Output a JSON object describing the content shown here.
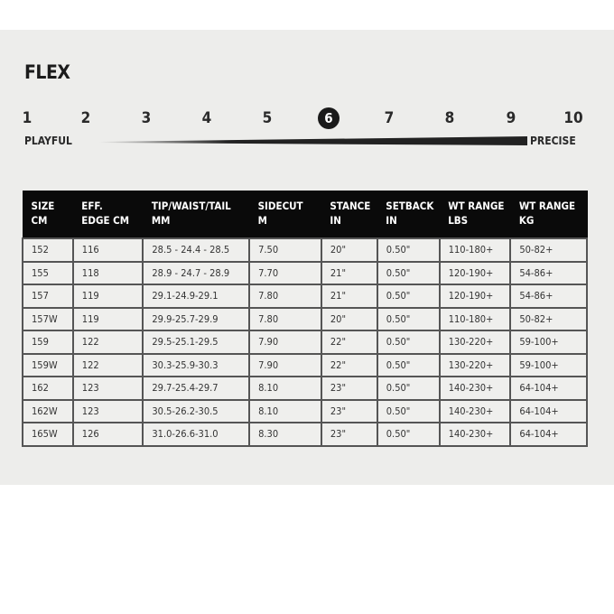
{
  "title": "FLEX",
  "flex": {
    "scale": [
      "1",
      "2",
      "3",
      "4",
      "5",
      "6",
      "7",
      "8",
      "9",
      "10"
    ],
    "selected": 6,
    "left_label": "PLAYFUL",
    "right_label": "PRECISE"
  },
  "table": {
    "headers": [
      [
        "SIZE",
        "CM"
      ],
      [
        "EFF.",
        "EDGE CM"
      ],
      [
        "TIP/WAIST/TAIL",
        "MM"
      ],
      [
        "SIDECUT",
        "M"
      ],
      [
        "STANCE",
        "IN"
      ],
      [
        "SETBACK",
        "IN"
      ],
      [
        "WT RANGE",
        "LBS"
      ],
      [
        "WT RANGE",
        "KG"
      ]
    ],
    "rows": [
      [
        "152",
        "116",
        "28.5 - 24.4 - 28.5",
        "7.50",
        "20\"",
        "0.50\"",
        "110-180+",
        "50-82+"
      ],
      [
        "155",
        "118",
        "28.9 - 24.7 - 28.9",
        "7.70",
        "21\"",
        "0.50\"",
        "120-190+",
        "54-86+"
      ],
      [
        "157",
        "119",
        "29.1-24.9-29.1",
        "7.80",
        "21\"",
        "0.50\"",
        "120-190+",
        "54-86+"
      ],
      [
        "157W",
        "119",
        "29.9-25.7-29.9",
        "7.80",
        "20\"",
        "0.50\"",
        "110-180+",
        "50-82+"
      ],
      [
        "159",
        "122",
        "29.5-25.1-29.5",
        "7.90",
        "22\"",
        "0.50\"",
        "130-220+",
        "59-100+"
      ],
      [
        "159W",
        "122",
        "30.3-25.9-30.3",
        "7.90",
        "22\"",
        "0.50\"",
        "130-220+",
        "59-100+"
      ],
      [
        "162",
        "123",
        "29.7-25.4-29.7",
        "8.10",
        "23\"",
        "0.50\"",
        "140-230+",
        "64-104+"
      ],
      [
        "162W",
        "123",
        "30.5-26.2-30.5",
        "8.10",
        "23\"",
        "0.50\"",
        "140-230+",
        "64-104+"
      ],
      [
        "165W",
        "126",
        "31.0-26.6-31.0",
        "8.30",
        "23\"",
        "0.50\"",
        "140-230+",
        "64-104+"
      ]
    ]
  }
}
